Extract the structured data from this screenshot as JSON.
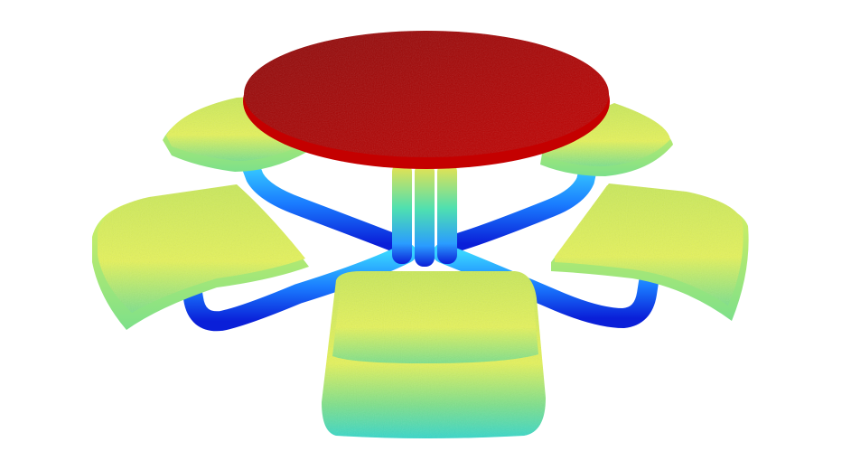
{
  "scene": {
    "subject": "round-picnic-table-with-five-seats",
    "colors": {
      "background": "#ffffff",
      "tabletop_top": "#8c0a0a",
      "tabletop_edge": "#c40000",
      "seat_top": "#c9e85a",
      "seat_mid": "#e4f25a",
      "seat_low": "#7de08a",
      "seat_bottom": "#35d7c9",
      "frame_dark": "#0a1fd8",
      "frame_mid": "#1a7cff",
      "frame_light": "#39d3ff",
      "column_top": "#f2e24a",
      "column_mid": "#4fe0b0",
      "column_low": "#2a9cff"
    }
  }
}
